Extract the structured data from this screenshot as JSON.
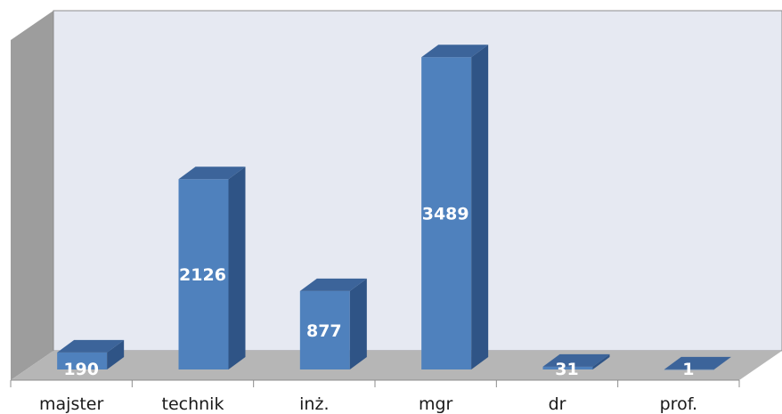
{
  "chart_data": {
    "type": "bar",
    "style": "3d-column",
    "categories": [
      "majster",
      "technik",
      "inż.",
      "mgr",
      "dr",
      "prof."
    ],
    "values": [
      190,
      2126,
      877,
      3489,
      31,
      1
    ],
    "data_labels": [
      "190",
      "2126",
      "877",
      "3489",
      "31",
      "1"
    ],
    "title": "",
    "xlabel": "",
    "ylabel": "",
    "ylim": [
      0,
      3700
    ],
    "grid": false,
    "legend": "none",
    "colors": {
      "bar_front": "#4f81bd",
      "bar_side": "#2f5486",
      "bar_top": "#3c649a",
      "back_wall": "#e6e9f2",
      "side_wall": "#9d9d9d",
      "floor": "#b6b6b6",
      "wall_edge": "#8c8c8c"
    }
  }
}
